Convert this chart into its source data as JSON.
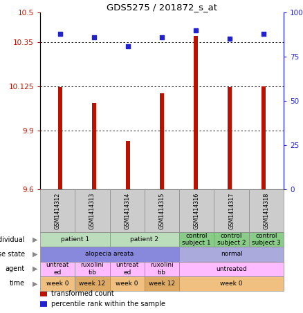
{
  "title": "GDS5275 / 201872_s_at",
  "samples": [
    "GSM1414312",
    "GSM1414313",
    "GSM1414314",
    "GSM1414315",
    "GSM1414316",
    "GSM1414317",
    "GSM1414318"
  ],
  "transformed_count": [
    10.12,
    10.04,
    9.845,
    10.09,
    10.38,
    10.12,
    10.125
  ],
  "percentile_rank": [
    88,
    86,
    81,
    86,
    90,
    85,
    88
  ],
  "ylim_left": [
    9.6,
    10.5
  ],
  "yticks_left": [
    9.6,
    9.9,
    10.125,
    10.35,
    10.5
  ],
  "ytick_labels_left": [
    "9.6",
    "9.9",
    "10.125",
    "10.35",
    "10.5"
  ],
  "ylim_right": [
    0,
    100
  ],
  "yticks_right": [
    0,
    25,
    50,
    75,
    100
  ],
  "ytick_labels_right": [
    "0",
    "25",
    "50",
    "75",
    "100%"
  ],
  "bar_color": "#bb1100",
  "dot_color": "#2222cc",
  "annotation_rows": [
    {
      "label": "individual",
      "cells": [
        {
          "text": "patient 1",
          "span": [
            0,
            1
          ],
          "color": "#bbddbb"
        },
        {
          "text": "patient 2",
          "span": [
            2,
            3
          ],
          "color": "#bbddbb"
        },
        {
          "text": "control\nsubject 1",
          "span": [
            4,
            4
          ],
          "color": "#88cc88"
        },
        {
          "text": "control\nsubject 2",
          "span": [
            5,
            5
          ],
          "color": "#88cc88"
        },
        {
          "text": "control\nsubject 3",
          "span": [
            6,
            6
          ],
          "color": "#88cc88"
        }
      ]
    },
    {
      "label": "disease state",
      "cells": [
        {
          "text": "alopecia areata",
          "span": [
            0,
            3
          ],
          "color": "#8888dd"
        },
        {
          "text": "normal",
          "span": [
            4,
            6
          ],
          "color": "#aaaadd"
        }
      ]
    },
    {
      "label": "agent",
      "cells": [
        {
          "text": "untreat\ned",
          "span": [
            0,
            0
          ],
          "color": "#ffbbff"
        },
        {
          "text": "ruxolini\ntib",
          "span": [
            1,
            1
          ],
          "color": "#ffbbff"
        },
        {
          "text": "untreat\ned",
          "span": [
            2,
            2
          ],
          "color": "#ffbbff"
        },
        {
          "text": "ruxolini\ntib",
          "span": [
            3,
            3
          ],
          "color": "#ffbbff"
        },
        {
          "text": "untreated",
          "span": [
            4,
            6
          ],
          "color": "#ffbbff"
        }
      ]
    },
    {
      "label": "time",
      "cells": [
        {
          "text": "week 0",
          "span": [
            0,
            0
          ],
          "color": "#f0c080"
        },
        {
          "text": "week 12",
          "span": [
            1,
            1
          ],
          "color": "#ddaa66"
        },
        {
          "text": "week 0",
          "span": [
            2,
            2
          ],
          "color": "#f0c080"
        },
        {
          "text": "week 12",
          "span": [
            3,
            3
          ],
          "color": "#ddaa66"
        },
        {
          "text": "week 0",
          "span": [
            4,
            6
          ],
          "color": "#f0c080"
        }
      ]
    }
  ],
  "legend_items": [
    {
      "color": "#bb1100",
      "label": "transformed count"
    },
    {
      "color": "#2222cc",
      "label": "percentile rank within the sample"
    }
  ],
  "grid_yticks": [
    9.9,
    10.125,
    10.35
  ],
  "bg_color": "#ffffff",
  "sample_box_color": "#cccccc"
}
